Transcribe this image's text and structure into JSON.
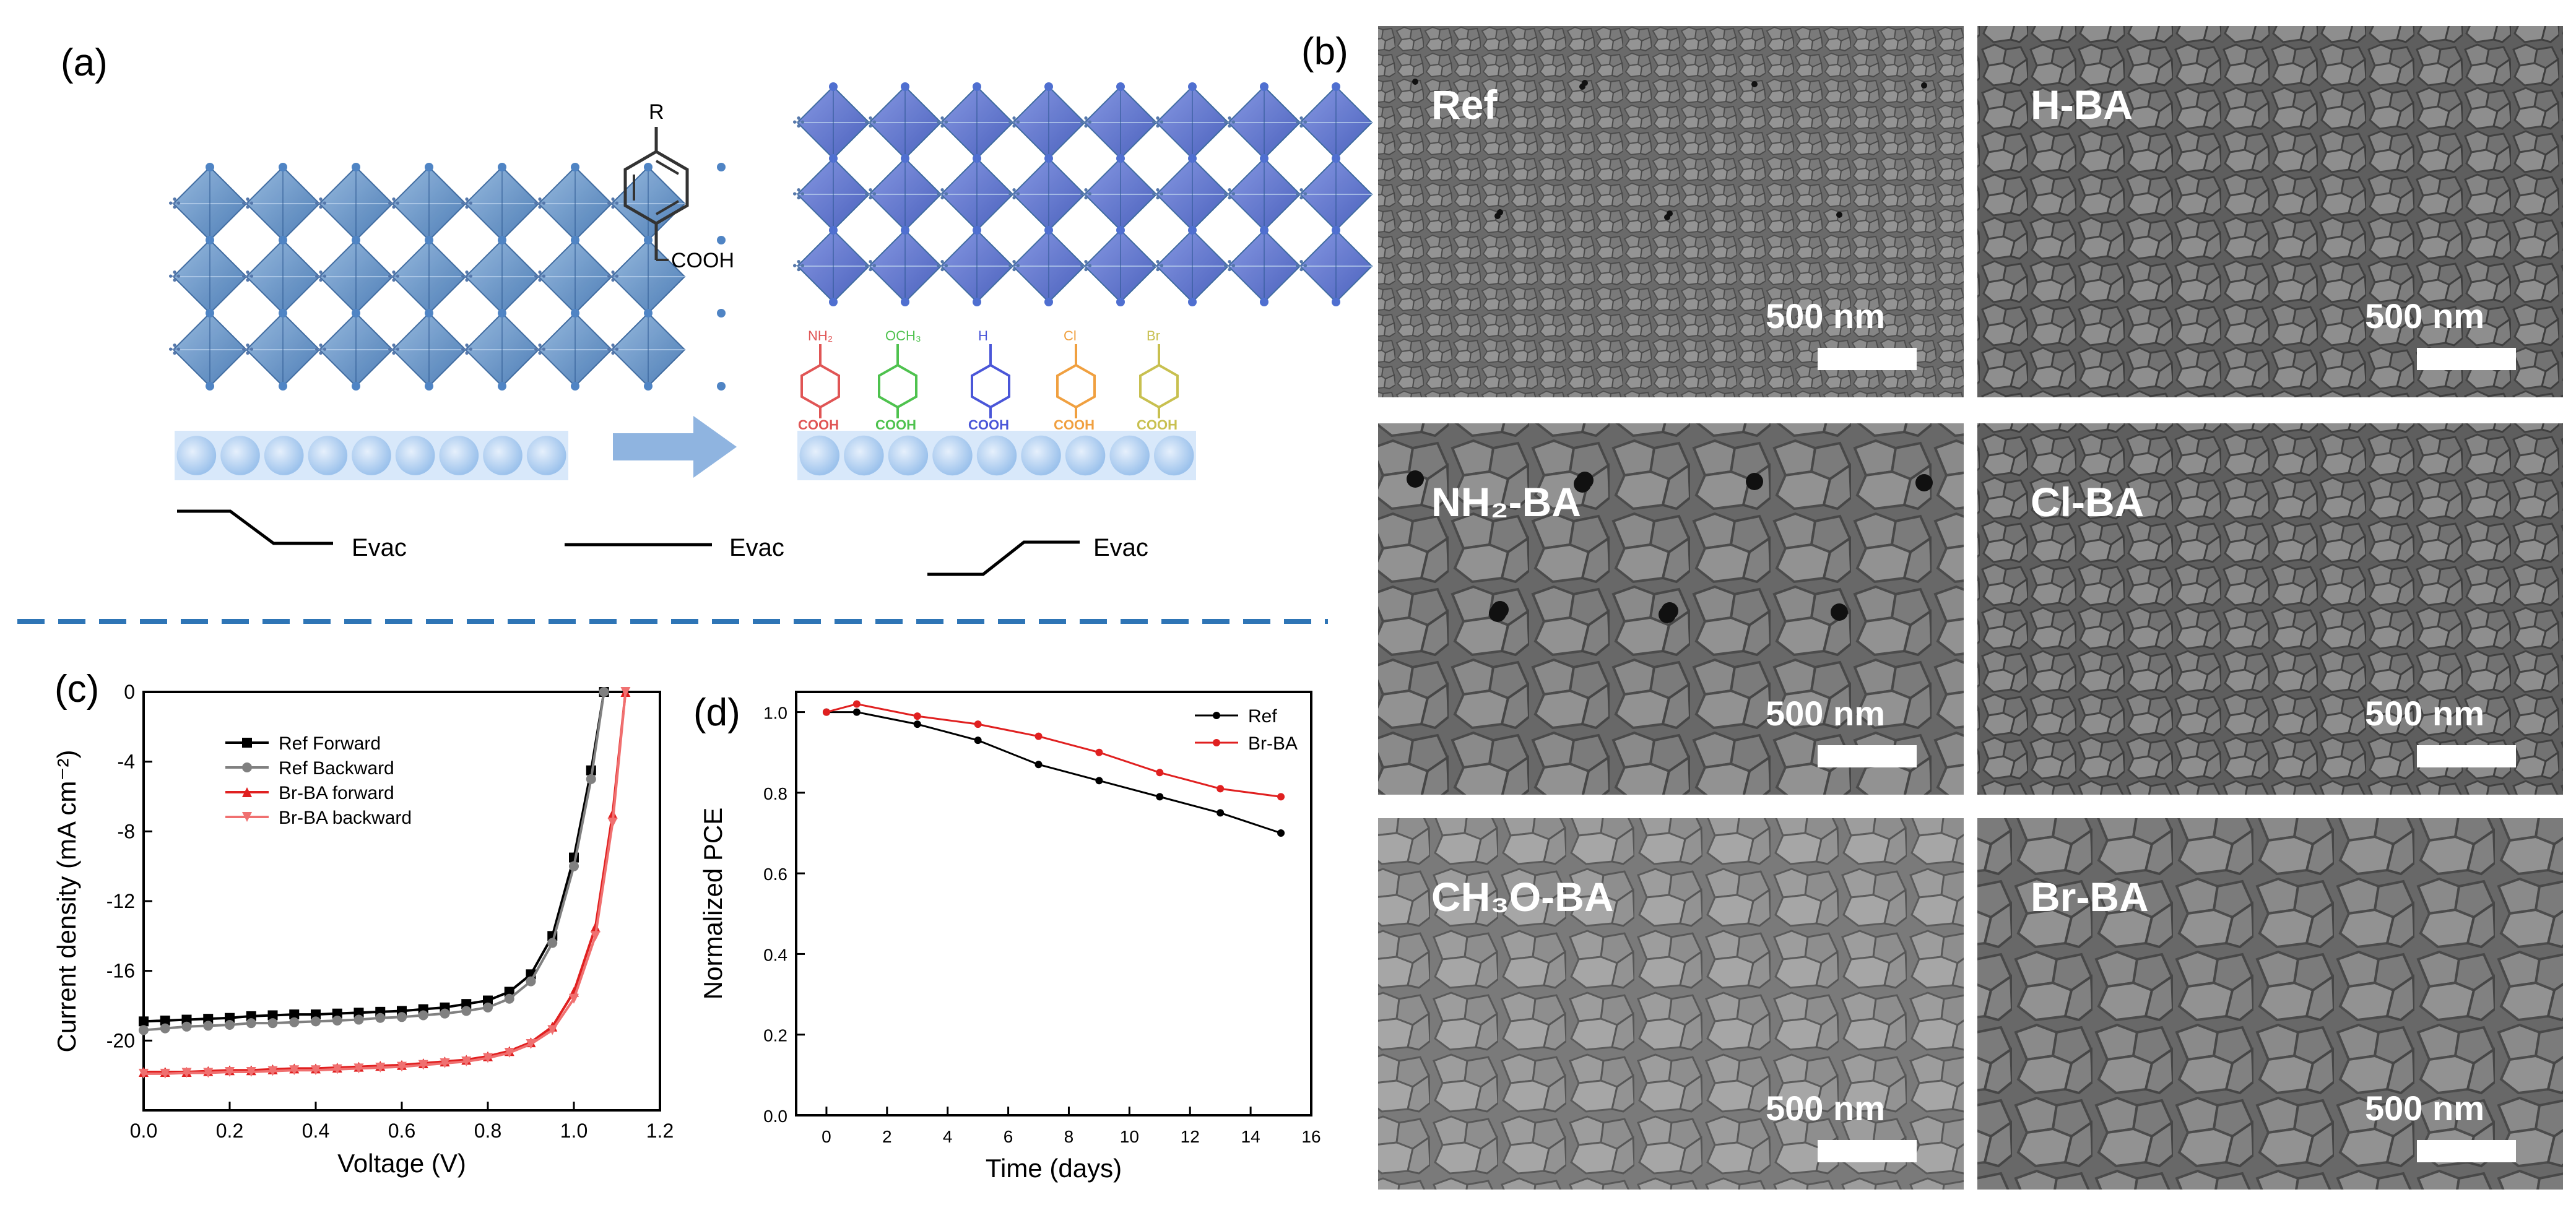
{
  "panels": {
    "a": "(a)",
    "b": "(b)",
    "c": "(c)",
    "d": "(d)"
  },
  "scheme": {
    "reagent_r": "R",
    "reagent_cooh": "COOH",
    "evac_labels": [
      "Evac",
      "Evac",
      "Evac"
    ],
    "substituents": [
      {
        "label": "NH₂",
        "color": "#e05555"
      },
      {
        "label": "OCH₃",
        "color": "#4ec24e"
      },
      {
        "label": "H",
        "color": "#4a56d8"
      },
      {
        "label": "Cl",
        "color": "#f0a040"
      },
      {
        "label": "Br",
        "color": "#c8c050"
      }
    ],
    "cooh_label": "COOH"
  },
  "sem": {
    "scale_text": "500 nm",
    "images": [
      {
        "label": "Ref"
      },
      {
        "label": "H-BA"
      },
      {
        "label": "NH₂-BA"
      },
      {
        "label": "Cl-BA"
      },
      {
        "label": "CH₃O-BA"
      },
      {
        "label": "Br-BA"
      }
    ]
  },
  "chart_data": [
    {
      "type": "line",
      "panel": "(c)",
      "xlabel": "Voltage (V)",
      "ylabel": "Current density (mA cm⁻²)",
      "xlim": [
        0,
        1.2
      ],
      "ylim": [
        -24,
        0
      ],
      "xticks": [
        "0.0",
        "0.2",
        "0.4",
        "0.6",
        "0.8",
        "1.0",
        "1.2"
      ],
      "yticks": [
        "0",
        "-4",
        "-8",
        "-12",
        "-16",
        "-20"
      ],
      "legend_position": "top-left",
      "series": [
        {
          "name": "Ref Forward",
          "color": "#000000",
          "marker": "square",
          "x": [
            0.0,
            0.05,
            0.1,
            0.15,
            0.2,
            0.25,
            0.3,
            0.35,
            0.4,
            0.45,
            0.5,
            0.55,
            0.6,
            0.65,
            0.7,
            0.75,
            0.8,
            0.85,
            0.9,
            0.95,
            1.0,
            1.04,
            1.07
          ],
          "y": [
            -18.9,
            -18.85,
            -18.8,
            -18.75,
            -18.7,
            -18.6,
            -18.55,
            -18.5,
            -18.5,
            -18.45,
            -18.4,
            -18.35,
            -18.3,
            -18.2,
            -18.1,
            -17.9,
            -17.7,
            -17.2,
            -16.2,
            -14.0,
            -9.5,
            -4.5,
            0.0
          ]
        },
        {
          "name": "Ref Backward",
          "color": "#808080",
          "marker": "circle",
          "x": [
            0.0,
            0.05,
            0.1,
            0.15,
            0.2,
            0.25,
            0.3,
            0.35,
            0.4,
            0.45,
            0.5,
            0.55,
            0.6,
            0.65,
            0.7,
            0.75,
            0.8,
            0.85,
            0.9,
            0.95,
            1.0,
            1.04,
            1.07
          ],
          "y": [
            -19.4,
            -19.3,
            -19.2,
            -19.15,
            -19.1,
            -19.0,
            -19.0,
            -18.95,
            -18.9,
            -18.85,
            -18.8,
            -18.7,
            -18.65,
            -18.55,
            -18.45,
            -18.3,
            -18.1,
            -17.6,
            -16.6,
            -14.4,
            -10.0,
            -5.0,
            0.0
          ]
        },
        {
          "name": "Br-BA forward",
          "color": "#e02020",
          "marker": "triangle-up",
          "x": [
            0.0,
            0.05,
            0.1,
            0.15,
            0.2,
            0.25,
            0.3,
            0.35,
            0.4,
            0.45,
            0.5,
            0.55,
            0.6,
            0.65,
            0.7,
            0.75,
            0.8,
            0.85,
            0.9,
            0.95,
            1.0,
            1.05,
            1.09,
            1.12
          ],
          "y": [
            -21.8,
            -21.8,
            -21.8,
            -21.75,
            -21.7,
            -21.7,
            -21.65,
            -21.6,
            -21.6,
            -21.55,
            -21.5,
            -21.45,
            -21.4,
            -21.3,
            -21.2,
            -21.1,
            -20.9,
            -20.6,
            -20.1,
            -19.2,
            -17.2,
            -13.5,
            -7.0,
            0.0
          ]
        },
        {
          "name": "Br-BA backward",
          "color": "#f07070",
          "marker": "triangle-down",
          "x": [
            0.0,
            0.05,
            0.1,
            0.15,
            0.2,
            0.25,
            0.3,
            0.35,
            0.4,
            0.45,
            0.5,
            0.55,
            0.6,
            0.65,
            0.7,
            0.75,
            0.8,
            0.85,
            0.9,
            0.95,
            1.0,
            1.05,
            1.09,
            1.12
          ],
          "y": [
            -21.9,
            -21.9,
            -21.85,
            -21.85,
            -21.8,
            -21.8,
            -21.75,
            -21.7,
            -21.7,
            -21.65,
            -21.6,
            -21.55,
            -21.5,
            -21.4,
            -21.3,
            -21.2,
            -21.0,
            -20.7,
            -20.2,
            -19.4,
            -17.6,
            -14.0,
            -7.5,
            0.0
          ]
        }
      ]
    },
    {
      "type": "line",
      "panel": "(d)",
      "xlabel": "Time (days)",
      "ylabel": "Normalized PCE",
      "xlim": [
        -1,
        16
      ],
      "ylim": [
        0,
        1.05
      ],
      "xticks": [
        "0",
        "2",
        "4",
        "6",
        "8",
        "10",
        "12",
        "14",
        "16"
      ],
      "yticks": [
        "0.0",
        "0.2",
        "0.4",
        "0.6",
        "0.8",
        "1.0"
      ],
      "legend_position": "top-right",
      "series": [
        {
          "name": "Ref",
          "color": "#000000",
          "marker": "circle",
          "x": [
            0,
            1,
            3,
            5,
            7,
            9,
            11,
            13,
            15
          ],
          "y": [
            1.0,
            1.0,
            0.97,
            0.93,
            0.87,
            0.83,
            0.79,
            0.75,
            0.7
          ]
        },
        {
          "name": "Br-BA",
          "color": "#e02020",
          "marker": "circle",
          "x": [
            0,
            1,
            3,
            5,
            7,
            9,
            11,
            13,
            15
          ],
          "y": [
            1.0,
            1.02,
            0.99,
            0.97,
            0.94,
            0.9,
            0.85,
            0.81,
            0.79
          ]
        }
      ]
    }
  ]
}
